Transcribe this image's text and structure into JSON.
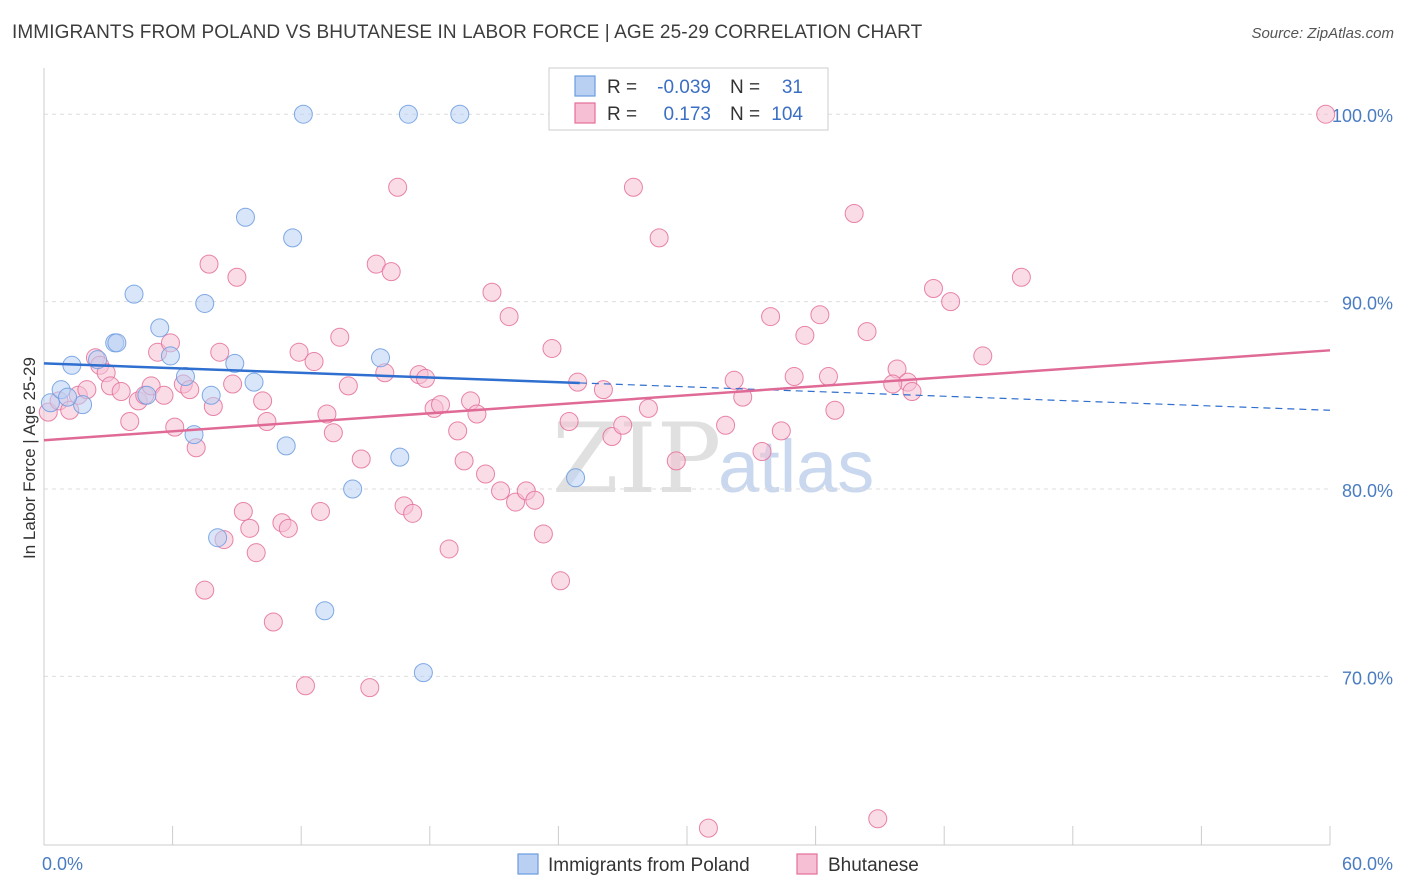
{
  "title": "IMMIGRANTS FROM POLAND VS BHUTANESE IN LABOR FORCE | AGE 25-29 CORRELATION CHART",
  "source": "Source: ZipAtlas.com",
  "watermark": {
    "zip": "ZIP",
    "atlas": "atlas"
  },
  "colors": {
    "blue": "#6b9be0",
    "blue_fill": "#b9d0f3",
    "pink": "#e46e9a",
    "pink_fill": "#f6bfd3",
    "axis_text": "#4a7cc1",
    "grid": "#dddddd"
  },
  "legend": {
    "r_label": "R =",
    "n_label": "N =",
    "rows": [
      {
        "r": "-0.039",
        "n": "31"
      },
      {
        "r": "0.173",
        "n": "104"
      }
    ]
  },
  "chart_data": {
    "type": "scatter",
    "title": "IMMIGRANTS FROM POLAND VS BHUTANESE IN LABOR FORCE | AGE 25-29 CORRELATION CHART",
    "xlabel": "",
    "ylabel": "In Labor Force | Age 25-29",
    "xlim": [
      0,
      60
    ],
    "ylim": [
      61,
      103
    ],
    "x_tick_labels": [
      "0.0%",
      "60.0%"
    ],
    "y_ticks": [
      {
        "value": 100,
        "label": "100.0%"
      },
      {
        "value": 90,
        "label": "90.0%"
      },
      {
        "value": 80,
        "label": "80.0%"
      },
      {
        "value": 70,
        "label": "70.0%"
      }
    ],
    "grid": true,
    "legend_position": "top-center",
    "series": [
      {
        "name": "Immigrants from Poland",
        "trend": {
          "x0": 0,
          "y0": 86.7,
          "x1": 60,
          "y1": 84.2,
          "solid_until": 25
        },
        "points": [
          [
            0.3,
            84.6
          ],
          [
            0.8,
            85.3
          ],
          [
            1.3,
            86.6
          ],
          [
            1.8,
            84.5
          ],
          [
            2.5,
            86.9
          ],
          [
            3.3,
            87.8
          ],
          [
            3.4,
            87.8
          ],
          [
            4.2,
            90.4
          ],
          [
            4.8,
            85.0
          ],
          [
            5.4,
            88.6
          ],
          [
            5.9,
            87.1
          ],
          [
            6.6,
            86.0
          ],
          [
            7.0,
            82.9
          ],
          [
            7.5,
            89.9
          ],
          [
            7.8,
            85.0
          ],
          [
            8.1,
            77.4
          ],
          [
            8.9,
            86.7
          ],
          [
            9.4,
            94.5
          ],
          [
            9.8,
            85.7
          ],
          [
            11.3,
            82.3
          ],
          [
            11.6,
            93.4
          ],
          [
            12.1,
            100.0
          ],
          [
            13.1,
            73.5
          ],
          [
            14.4,
            80.0
          ],
          [
            15.7,
            87.0
          ],
          [
            16.6,
            81.7
          ],
          [
            17.0,
            100.0
          ],
          [
            17.7,
            70.2
          ],
          [
            19.4,
            100.0
          ],
          [
            24.8,
            80.6
          ],
          [
            1.1,
            84.9
          ]
        ]
      },
      {
        "name": "Bhutanese",
        "trend": {
          "x0": 0,
          "y0": 82.6,
          "x1": 60,
          "y1": 87.4
        },
        "points": [
          [
            0.2,
            84.1
          ],
          [
            0.7,
            84.7
          ],
          [
            1.2,
            84.2
          ],
          [
            1.6,
            85.0
          ],
          [
            2.0,
            85.3
          ],
          [
            2.4,
            87.0
          ],
          [
            2.6,
            86.6
          ],
          [
            2.9,
            86.2
          ],
          [
            3.1,
            85.5
          ],
          [
            3.6,
            85.2
          ],
          [
            4.0,
            83.6
          ],
          [
            4.4,
            84.7
          ],
          [
            4.7,
            85.0
          ],
          [
            5.0,
            85.5
          ],
          [
            5.3,
            87.3
          ],
          [
            5.6,
            85.0
          ],
          [
            5.9,
            87.8
          ],
          [
            6.1,
            83.3
          ],
          [
            6.5,
            85.6
          ],
          [
            6.8,
            85.3
          ],
          [
            7.1,
            82.2
          ],
          [
            7.5,
            74.6
          ],
          [
            7.7,
            92.0
          ],
          [
            7.9,
            84.4
          ],
          [
            8.2,
            87.3
          ],
          [
            8.4,
            77.3
          ],
          [
            8.8,
            85.6
          ],
          [
            9.0,
            91.3
          ],
          [
            9.3,
            78.8
          ],
          [
            9.6,
            77.9
          ],
          [
            9.9,
            76.6
          ],
          [
            10.4,
            83.6
          ],
          [
            10.7,
            72.9
          ],
          [
            11.1,
            78.2
          ],
          [
            11.4,
            77.9
          ],
          [
            11.9,
            87.3
          ],
          [
            12.2,
            69.5
          ],
          [
            12.6,
            86.8
          ],
          [
            12.9,
            78.8
          ],
          [
            13.2,
            84.0
          ],
          [
            13.5,
            83.0
          ],
          [
            13.8,
            88.1
          ],
          [
            14.2,
            85.5
          ],
          [
            14.8,
            81.6
          ],
          [
            15.2,
            69.4
          ],
          [
            15.5,
            92.0
          ],
          [
            15.9,
            86.2
          ],
          [
            16.2,
            91.6
          ],
          [
            16.5,
            96.1
          ],
          [
            16.8,
            79.1
          ],
          [
            17.2,
            78.7
          ],
          [
            17.5,
            86.1
          ],
          [
            17.8,
            85.9
          ],
          [
            18.2,
            84.3
          ],
          [
            18.5,
            84.5
          ],
          [
            18.9,
            76.8
          ],
          [
            19.3,
            83.1
          ],
          [
            19.6,
            81.5
          ],
          [
            19.9,
            84.7
          ],
          [
            20.2,
            84.0
          ],
          [
            20.6,
            80.8
          ],
          [
            20.9,
            90.5
          ],
          [
            21.3,
            79.9
          ],
          [
            21.7,
            89.2
          ],
          [
            22.0,
            79.3
          ],
          [
            22.5,
            79.9
          ],
          [
            22.9,
            79.4
          ],
          [
            23.3,
            77.6
          ],
          [
            23.7,
            87.5
          ],
          [
            24.1,
            75.1
          ],
          [
            24.5,
            83.6
          ],
          [
            24.9,
            85.7
          ],
          [
            26.1,
            85.3
          ],
          [
            26.5,
            82.8
          ],
          [
            27.0,
            83.4
          ],
          [
            27.5,
            96.1
          ],
          [
            28.2,
            84.3
          ],
          [
            28.7,
            93.4
          ],
          [
            29.5,
            81.5
          ],
          [
            31.0,
            61.9
          ],
          [
            31.8,
            83.4
          ],
          [
            32.2,
            85.8
          ],
          [
            32.6,
            84.9
          ],
          [
            33.5,
            82.0
          ],
          [
            33.9,
            89.2
          ],
          [
            34.4,
            83.1
          ],
          [
            35.0,
            86.0
          ],
          [
            35.5,
            88.2
          ],
          [
            36.2,
            89.3
          ],
          [
            36.6,
            86.0
          ],
          [
            36.9,
            84.2
          ],
          [
            37.8,
            94.7
          ],
          [
            38.4,
            88.4
          ],
          [
            38.9,
            62.4
          ],
          [
            39.8,
            86.4
          ],
          [
            40.3,
            85.7
          ],
          [
            40.5,
            85.2
          ],
          [
            41.5,
            90.7
          ],
          [
            42.3,
            90.0
          ],
          [
            43.8,
            87.1
          ],
          [
            45.6,
            91.3
          ],
          [
            59.8,
            100.0
          ],
          [
            39.6,
            85.6
          ],
          [
            10.2,
            84.7
          ]
        ]
      }
    ]
  },
  "bottom_legend": [
    "Immigrants from Poland",
    "Bhutanese"
  ]
}
